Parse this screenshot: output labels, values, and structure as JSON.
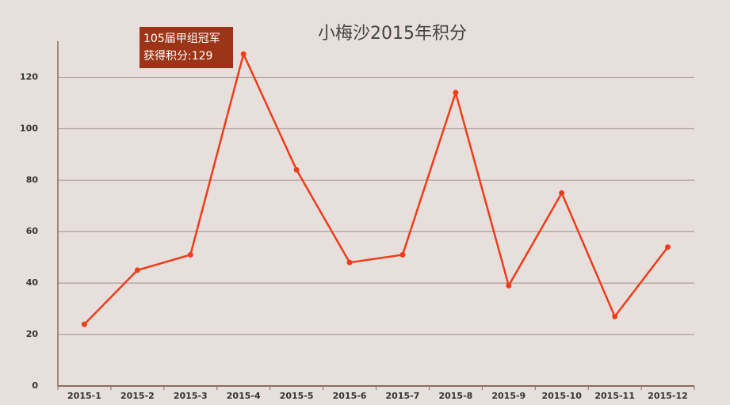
{
  "chart_data": {
    "type": "line",
    "title": "小梅沙2015年积分",
    "categories": [
      "2015-1",
      "2015-2",
      "2015-3",
      "2015-4",
      "2015-5",
      "2015-6",
      "2015-7",
      "2015-8",
      "2015-9",
      "2015-10",
      "2015-11",
      "2015-12"
    ],
    "values": [
      24,
      45,
      51,
      129,
      84,
      48,
      51,
      114,
      39,
      75,
      27,
      54
    ],
    "color": "#ee3d1c",
    "ylim": [
      0,
      134
    ],
    "yticks": [
      0,
      20,
      40,
      60,
      80,
      100,
      120
    ],
    "grid": true,
    "tooltip": {
      "lines": [
        "105届甲组冠军",
        "获得积分:129"
      ]
    }
  }
}
